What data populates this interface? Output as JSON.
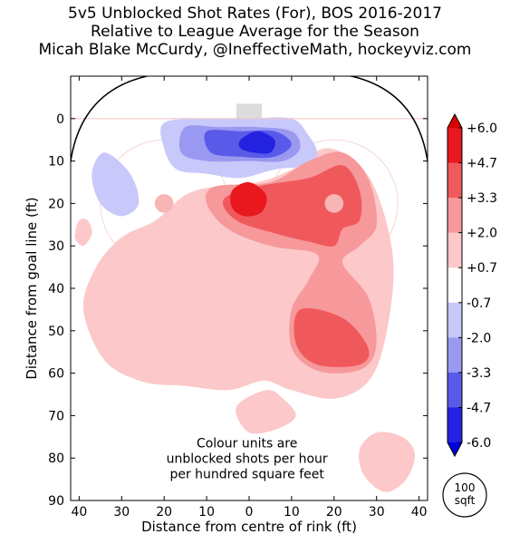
{
  "chart_data": {
    "type": "heatmap",
    "title": "5v5 Unblocked Shot Rates (For), BOS 2016-2017",
    "subtitle": "Relative to League Average for the Season",
    "author": "Micah Blake McCurdy, @IneffectiveMath, hockeyviz.com",
    "xlabel": "Distance from centre of rink (ft)",
    "ylabel": "Distance from goal line (ft)",
    "xlim": [
      42,
      -42
    ],
    "ylim": [
      90,
      -10
    ],
    "x_ticks": [
      "40",
      "30",
      "20",
      "10",
      "0",
      "10",
      "20",
      "30",
      "40"
    ],
    "x_tick_values": [
      40,
      30,
      20,
      10,
      0,
      -10,
      -20,
      -30,
      -40
    ],
    "y_ticks": [
      "0",
      "10",
      "20",
      "30",
      "40",
      "50",
      "60",
      "70",
      "80",
      "90"
    ],
    "y_tick_values": [
      0,
      10,
      20,
      30,
      40,
      50,
      60,
      70,
      80,
      90
    ],
    "colorbar": {
      "labels": [
        "+6.0",
        "+4.7",
        "+3.3",
        "+2.0",
        "+0.7",
        "-0.7",
        "-2.0",
        "-3.3",
        "-4.7",
        "-6.0"
      ],
      "levels": [
        6.0,
        4.7,
        3.3,
        2.0,
        0.7,
        -0.7,
        -2.0,
        -3.3,
        -4.7,
        -6.0
      ],
      "colors": {
        "pos_4": "#e8181e",
        "pos_3": "#f0595c",
        "pos_2": "#f7999b",
        "pos_1": "#fcc8c9",
        "zero": "#ffffff",
        "neg_1": "#c8c8fa",
        "neg_2": "#9999f2",
        "neg_3": "#5a5ae8",
        "neg_4": "#2222e0"
      }
    },
    "annotation": [
      "Colour units are",
      "unblocked shots per hour",
      "per hundred square feet"
    ],
    "scale_label": [
      "100",
      "sqft"
    ],
    "contours": [
      {
        "level": 1,
        "sign": "pos",
        "points": [
          [
            -2,
            15
          ],
          [
            -10,
            12
          ],
          [
            -18,
            7
          ],
          [
            -26,
            11
          ],
          [
            -31,
            20
          ],
          [
            -34,
            35
          ],
          [
            -32,
            52
          ],
          [
            -28,
            62
          ],
          [
            -20,
            66
          ],
          [
            -10,
            64
          ],
          [
            -5,
            62
          ],
          [
            -2,
            62
          ],
          [
            5,
            64
          ],
          [
            15,
            63
          ],
          [
            25,
            62
          ],
          [
            34,
            57
          ],
          [
            39,
            45
          ],
          [
            36,
            35
          ],
          [
            30,
            28
          ],
          [
            22,
            24
          ],
          [
            15,
            18
          ],
          [
            8,
            16
          ]
        ]
      },
      {
        "level": 1,
        "sign": "pos",
        "points": [
          [
            -4,
            64
          ],
          [
            3,
            68
          ],
          [
            0,
            74
          ],
          [
            -7,
            73
          ],
          [
            -11,
            70
          ],
          [
            -8,
            66
          ]
        ]
      },
      {
        "level": 1,
        "sign": "pos",
        "points": [
          [
            -39,
            79
          ],
          [
            -37,
            85
          ],
          [
            -32,
            88
          ],
          [
            -27,
            84
          ],
          [
            -26,
            78
          ],
          [
            -30,
            74
          ],
          [
            -36,
            75
          ]
        ]
      },
      {
        "level": 1,
        "sign": "pos",
        "points": [
          [
            40,
            24
          ],
          [
            41,
            28
          ],
          [
            39,
            30
          ],
          [
            37,
            27
          ],
          [
            38,
            24
          ]
        ]
      },
      {
        "level": 2,
        "sign": "pos",
        "points": [
          [
            -5,
            15
          ],
          [
            -14,
            10
          ],
          [
            -22,
            8
          ],
          [
            -28,
            14
          ],
          [
            -30,
            25
          ],
          [
            -26,
            30
          ],
          [
            -22,
            34
          ],
          [
            -28,
            42
          ],
          [
            -30,
            52
          ],
          [
            -28,
            58
          ],
          [
            -22,
            60
          ],
          [
            -15,
            59
          ],
          [
            -10,
            54
          ],
          [
            -10,
            45
          ],
          [
            -14,
            38
          ],
          [
            -16,
            32
          ],
          [
            -5,
            30
          ],
          [
            5,
            26
          ],
          [
            10,
            20
          ],
          [
            8,
            16
          ]
        ]
      },
      {
        "level": 3,
        "sign": "pos",
        "points": [
          [
            -2,
            16
          ],
          [
            -14,
            14
          ],
          [
            -22,
            11
          ],
          [
            -26,
            17
          ],
          [
            -26,
            24
          ],
          [
            -22,
            26
          ],
          [
            -20,
            30
          ],
          [
            -14,
            29
          ],
          [
            -6,
            27
          ],
          [
            3,
            24
          ],
          [
            6,
            19
          ]
        ]
      },
      {
        "level": 3,
        "sign": "pos",
        "points": [
          [
            -12,
            45
          ],
          [
            -22,
            47
          ],
          [
            -28,
            54
          ],
          [
            -26,
            58
          ],
          [
            -16,
            58
          ],
          [
            -11,
            53
          ]
        ]
      },
      {
        "level": 4,
        "sign": "pos",
        "points": [
          [
            4,
            17
          ],
          [
            0,
            15
          ],
          [
            -4,
            18
          ],
          [
            -3,
            22
          ],
          [
            1,
            23
          ],
          [
            4,
            21
          ]
        ]
      },
      {
        "level": 1,
        "sign": "neg",
        "points": [
          [
            20,
            1
          ],
          [
            10,
            0
          ],
          [
            0,
            0
          ],
          [
            -10,
            0
          ],
          [
            -14,
            4
          ],
          [
            -16,
            8
          ],
          [
            -14,
            11
          ],
          [
            -6,
            12
          ],
          [
            2,
            14
          ],
          [
            10,
            13
          ],
          [
            17,
            12
          ],
          [
            20,
            7
          ]
        ]
      },
      {
        "level": 1,
        "sign": "neg",
        "points": [
          [
            34,
            8
          ],
          [
            28,
            13
          ],
          [
            26,
            20
          ],
          [
            30,
            23
          ],
          [
            35,
            20
          ],
          [
            37,
            13
          ]
        ]
      },
      {
        "level": 2,
        "sign": "neg",
        "points": [
          [
            15,
            2
          ],
          [
            7,
            2
          ],
          [
            -2,
            2
          ],
          [
            -10,
            3
          ],
          [
            -12,
            7
          ],
          [
            -8,
            10
          ],
          [
            0,
            10
          ],
          [
            10,
            10
          ],
          [
            16,
            8
          ]
        ]
      },
      {
        "level": 3,
        "sign": "neg",
        "points": [
          [
            10,
            3
          ],
          [
            2,
            3
          ],
          [
            -6,
            3
          ],
          [
            -10,
            6
          ],
          [
            -6,
            9
          ],
          [
            2,
            9
          ],
          [
            9,
            8
          ]
        ]
      },
      {
        "level": 4,
        "sign": "neg",
        "points": [
          [
            2,
            5
          ],
          [
            -2,
            3
          ],
          [
            -6,
            5
          ],
          [
            -5,
            8
          ],
          [
            -1,
            8
          ],
          [
            2,
            7
          ]
        ]
      }
    ]
  }
}
